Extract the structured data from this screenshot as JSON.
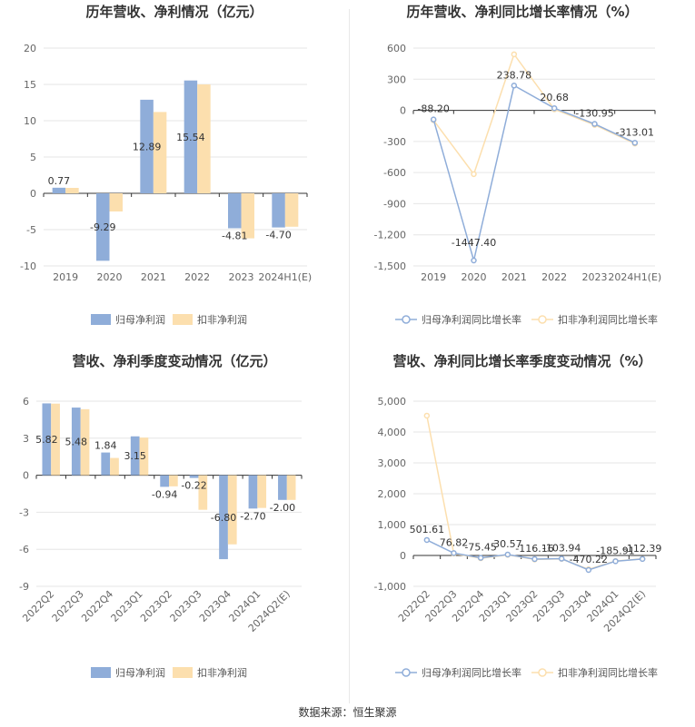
{
  "colors": {
    "series1": "#8fadd9",
    "series2": "#fcdfae",
    "grid": "#e6e6e6",
    "axis": "#333333",
    "tick": "#666666"
  },
  "source": "数据来源：恒生聚源",
  "chart_data": [
    {
      "type": "bar",
      "title": "历年营收、净利情况（亿元）",
      "categories": [
        "2019",
        "2020",
        "2021",
        "2022",
        "2023",
        "2024H1(E)"
      ],
      "yticks": [
        20,
        15,
        10,
        5,
        0,
        -5,
        -10
      ],
      "ylim": [
        -10,
        20
      ],
      "series": [
        {
          "name": "归母净利润",
          "values": [
            0.77,
            -9.29,
            12.89,
            15.54,
            -4.81,
            -4.7
          ],
          "labels": [
            "0.77",
            "-9.29",
            "12.89",
            "15.54",
            "-4.81",
            "-4.70"
          ]
        },
        {
          "name": "扣非净利润",
          "values": [
            0.75,
            -2.5,
            11.2,
            15.0,
            -6.2,
            -4.6
          ]
        }
      ],
      "legend": "bottom"
    },
    {
      "type": "line",
      "title": "历年营收、净利同比增长率情况（%）",
      "categories": [
        "2019",
        "2020",
        "2021",
        "2022",
        "2023",
        "2024H1(E)"
      ],
      "yticks": [
        600,
        300,
        0,
        -300,
        -600,
        -900,
        -1200,
        -1500
      ],
      "ytick_labels": [
        "600",
        "300",
        "0",
        "-300",
        "-600",
        "-900",
        "-1,200",
        "-1,500"
      ],
      "ylim": [
        -1500,
        600
      ],
      "series": [
        {
          "name": "归母净利润同比增长率",
          "values": [
            -88.2,
            -1447.4,
            238.78,
            20.68,
            -130.95,
            -313.01
          ],
          "labels": [
            "-88.20",
            "-1447.40",
            "238.78",
            "20.68",
            "-130.95",
            "-313.01"
          ]
        },
        {
          "name": "扣非净利润同比增长率",
          "values": [
            -95,
            -615,
            540,
            10,
            -140,
            -320
          ]
        }
      ],
      "legend": "bottom"
    },
    {
      "type": "bar",
      "title": "营收、净利季度变动情况（亿元）",
      "categories": [
        "2022Q2",
        "2022Q3",
        "2022Q4",
        "2023Q1",
        "2023Q2",
        "2023Q3",
        "2023Q4",
        "2024Q1",
        "2024Q2(E)"
      ],
      "yticks": [
        6,
        3,
        0,
        -3,
        -6,
        -9
      ],
      "ylim": [
        -9,
        6
      ],
      "series": [
        {
          "name": "归母净利润",
          "values": [
            5.82,
            5.48,
            1.84,
            3.15,
            -0.94,
            -0.22,
            -6.8,
            -2.7,
            -2.0
          ],
          "labels": [
            "5.82",
            "5.48",
            "1.84",
            "3.15",
            "-0.94",
            "-0.22",
            "-6.80",
            "-2.70",
            "-2.00"
          ]
        },
        {
          "name": "扣非净利润",
          "values": [
            5.8,
            5.35,
            1.4,
            3.05,
            -0.9,
            -2.8,
            -5.6,
            -2.65,
            -2.0
          ]
        }
      ],
      "legend": "bottom"
    },
    {
      "type": "line",
      "title": "营收、净利同比增长率季度变动情况（%）",
      "categories": [
        "2022Q2",
        "2022Q3",
        "2022Q4",
        "2023Q1",
        "2023Q2",
        "2023Q3",
        "2023Q4",
        "2024Q1",
        "2024Q2(E)"
      ],
      "yticks": [
        5000,
        4000,
        3000,
        2000,
        1000,
        0,
        -1000
      ],
      "ytick_labels": [
        "5,000",
        "4,000",
        "3,000",
        "2,000",
        "1,000",
        "0",
        "-1,000"
      ],
      "ylim": [
        -1000,
        5000
      ],
      "series": [
        {
          "name": "归母净利润同比增长率",
          "values": [
            501.61,
            76.82,
            -75.45,
            30.57,
            -116.16,
            -103.94,
            -470.22,
            -185.91,
            -112.39
          ],
          "labels": [
            "501.61",
            "76.82",
            "-75.45",
            "30.57",
            "-116.16",
            "-103.94",
            "-470.22",
            "-185.91",
            "-112.39"
          ]
        },
        {
          "name": "扣非净利润同比增长率",
          "values": [
            4530,
            60,
            -90,
            20,
            -130,
            -110,
            -450,
            -180,
            -110
          ]
        }
      ],
      "legend": "bottom"
    }
  ]
}
